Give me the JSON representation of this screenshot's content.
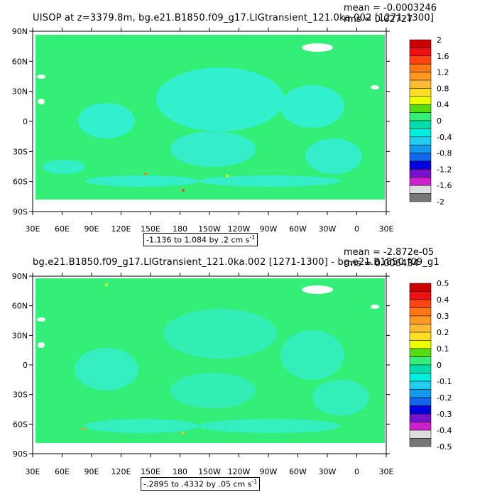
{
  "panels": [
    {
      "title": "UISOP at z=3379.8m, bg.e21.B1850.f09_g17.LIGtransient_121.0ka.002 [1271-1300]",
      "mean": "mean = -0.0003246",
      "rms": "rms = 0.02727",
      "range": "-1.136 to 1.084 by .2 cm s",
      "range_sup": "-1",
      "lat_ticks": [
        "90N",
        "60N",
        "30N",
        "0",
        "30S",
        "60S",
        "90S"
      ],
      "lon_ticks": [
        "30E",
        "60E",
        "90E",
        "120E",
        "150E",
        "180",
        "150W",
        "120W",
        "90W",
        "60W",
        "30W",
        "0",
        "30E"
      ],
      "colorbar_labels": [
        "2",
        "1.6",
        "1.2",
        "0.8",
        "0.4",
        "0",
        "-0.4",
        "-0.8",
        "-1.2",
        "-1.6",
        "-2"
      ]
    },
    {
      "title": "bg.e21.B1850.f09_g17.LIGtransient_121.0ka.002 [1271-1300] - bg.e21.B1850.f09_g1",
      "mean": "mean = -2.872e-05",
      "rms": "rms = 0.006434",
      "range": "-.2895 to .4332 by .05 cm s",
      "range_sup": "-1",
      "lat_ticks": [
        "90N",
        "60N",
        "30N",
        "0",
        "30S",
        "60S",
        "90S"
      ],
      "lon_ticks": [
        "30E",
        "60E",
        "90E",
        "120E",
        "150E",
        "180",
        "150W",
        "120W",
        "90W",
        "60W",
        "30W",
        "0",
        "30E"
      ],
      "colorbar_labels": [
        "0.5",
        "0.4",
        "0.3",
        "0.2",
        "0.1",
        "0",
        "-0.1",
        "-0.2",
        "-0.3",
        "-0.4",
        "-0.5"
      ]
    }
  ],
  "colors": {
    "ocean_base": "#33ee77",
    "ocean_alt": "#33eedd",
    "land": "#ffffff",
    "colorbar": [
      "#cc0000",
      "#ee1111",
      "#ff4411",
      "#ff7711",
      "#ff9922",
      "#ffbb33",
      "#ffdd22",
      "#eeff00",
      "#55dd11",
      "#33ee77",
      "#00ddaa",
      "#00eedd",
      "#22ccee",
      "#1199ee",
      "#1166ee",
      "#0000dd",
      "#7711cc",
      "#cc22cc",
      "#dddddd",
      "#777777"
    ]
  }
}
